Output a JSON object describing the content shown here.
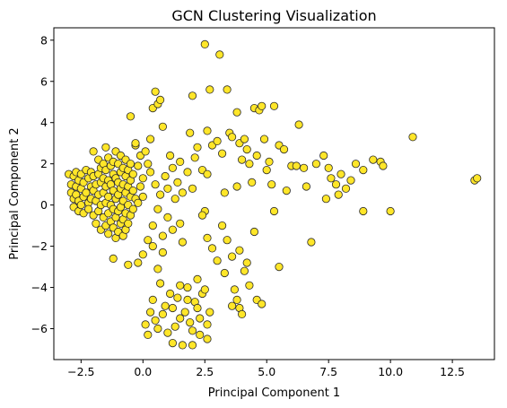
{
  "chart_data": {
    "type": "scatter",
    "title": "GCN Clustering Visualization",
    "xlabel": "Principal Component 1",
    "ylabel": "Principal Component 2",
    "xlim": [
      -3.6,
      14.2
    ],
    "ylim": [
      -7.5,
      8.6
    ],
    "xticks": [
      -2.5,
      0.0,
      2.5,
      5.0,
      7.5,
      10.0,
      12.5
    ],
    "xtick_labels": [
      "−2.5",
      "0.0",
      "2.5",
      "5.0",
      "7.5",
      "10.0",
      "12.5"
    ],
    "yticks": [
      -6,
      -4,
      -2,
      0,
      2,
      4,
      6,
      8
    ],
    "ytick_labels": [
      "−6",
      "−4",
      "−2",
      "0",
      "2",
      "4",
      "6",
      "8"
    ],
    "grid": false,
    "marker_color": "#ffe629",
    "marker_edge_color": "#2a2a2a",
    "points": [
      [
        -3.0,
        1.5
      ],
      [
        -2.9,
        1.0
      ],
      [
        -2.9,
        0.6
      ],
      [
        -2.8,
        1.4
      ],
      [
        -2.8,
        0.3
      ],
      [
        -2.8,
        -0.1
      ],
      [
        -2.7,
        1.6
      ],
      [
        -2.7,
        0.9
      ],
      [
        -2.7,
        0.5
      ],
      [
        -2.6,
        1.2
      ],
      [
        -2.6,
        0.2
      ],
      [
        -2.6,
        -0.3
      ],
      [
        -2.5,
        1.5
      ],
      [
        -2.5,
        0.8
      ],
      [
        -2.5,
        0.0
      ],
      [
        -2.4,
        1.1
      ],
      [
        -2.4,
        0.4
      ],
      [
        -2.4,
        -0.4
      ],
      [
        -2.3,
        1.7
      ],
      [
        -2.3,
        0.6
      ],
      [
        -2.2,
        1.3
      ],
      [
        -2.2,
        0.1
      ],
      [
        -2.2,
        -0.2
      ],
      [
        -2.1,
        1.6
      ],
      [
        -2.1,
        0.9
      ],
      [
        -2.1,
        0.3
      ],
      [
        -2.0,
        2.6
      ],
      [
        -2.0,
        1.4
      ],
      [
        -2.0,
        0.7
      ],
      [
        -2.0,
        -0.5
      ],
      [
        -1.9,
        1.0
      ],
      [
        -1.9,
        0.2
      ],
      [
        -1.9,
        -0.9
      ],
      [
        -1.8,
        2.2
      ],
      [
        -1.8,
        1.5
      ],
      [
        -1.8,
        0.5
      ],
      [
        -1.8,
        -0.3
      ],
      [
        -1.7,
        1.8
      ],
      [
        -1.7,
        1.1
      ],
      [
        -1.7,
        0.0
      ],
      [
        -1.7,
        -1.2
      ],
      [
        -1.6,
        2.0
      ],
      [
        -1.6,
        1.3
      ],
      [
        -1.6,
        0.6
      ],
      [
        -1.6,
        -0.6
      ],
      [
        -1.5,
        2.8
      ],
      [
        -1.5,
        1.7
      ],
      [
        -1.5,
        0.9
      ],
      [
        -1.5,
        0.1
      ],
      [
        -1.5,
        -1.0
      ],
      [
        -1.4,
        2.3
      ],
      [
        -1.4,
        1.2
      ],
      [
        -1.4,
        0.4
      ],
      [
        -1.4,
        -0.4
      ],
      [
        -1.4,
        -1.4
      ],
      [
        -1.3,
        1.9
      ],
      [
        -1.3,
        1.0
      ],
      [
        -1.3,
        0.0
      ],
      [
        -1.3,
        -0.8
      ],
      [
        -1.2,
        2.1
      ],
      [
        -1.2,
        1.5
      ],
      [
        -1.2,
        0.7
      ],
      [
        -1.2,
        -0.2
      ],
      [
        -1.2,
        -1.1
      ],
      [
        -1.1,
        2.6
      ],
      [
        -1.1,
        1.3
      ],
      [
        -1.1,
        0.3
      ],
      [
        -1.1,
        -0.6
      ],
      [
        -1.1,
        -1.6
      ],
      [
        -1.0,
        2.0
      ],
      [
        -1.0,
        1.1
      ],
      [
        -1.0,
        0.5
      ],
      [
        -1.0,
        -0.3
      ],
      [
        -1.0,
        -1.3
      ],
      [
        -0.9,
        2.4
      ],
      [
        -0.9,
        1.6
      ],
      [
        -0.9,
        0.8
      ],
      [
        -0.9,
        -0.1
      ],
      [
        -0.9,
        -0.9
      ],
      [
        -0.8,
        1.8
      ],
      [
        -0.8,
        1.0
      ],
      [
        -0.8,
        0.2
      ],
      [
        -0.8,
        -0.7
      ],
      [
        -0.8,
        -1.5
      ],
      [
        -0.7,
        2.2
      ],
      [
        -0.7,
        1.4
      ],
      [
        -0.7,
        0.6
      ],
      [
        -0.7,
        -0.4
      ],
      [
        -0.7,
        -1.2
      ],
      [
        -0.6,
        1.7
      ],
      [
        -0.6,
        0.9
      ],
      [
        -0.6,
        0.0
      ],
      [
        -0.6,
        -0.9
      ],
      [
        -0.5,
        2.0
      ],
      [
        -0.5,
        1.2
      ],
      [
        -0.5,
        0.4
      ],
      [
        -0.5,
        -0.5
      ],
      [
        -0.4,
        1.5
      ],
      [
        -0.4,
        0.7
      ],
      [
        -0.4,
        -0.2
      ],
      [
        -0.3,
        2.9
      ],
      [
        -0.3,
        0.3
      ],
      [
        -0.2,
        1.9
      ],
      [
        -0.2,
        0.1
      ],
      [
        -0.1,
        2.4
      ],
      [
        -0.1,
        0.9
      ],
      [
        0.0,
        1.3
      ],
      [
        0.0,
        0.4
      ],
      [
        -0.5,
        4.3
      ],
      [
        -0.3,
        3.0
      ],
      [
        0.1,
        2.6
      ],
      [
        0.2,
        2.0
      ],
      [
        0.3,
        3.2
      ],
      [
        0.4,
        4.7
      ],
      [
        0.5,
        5.5
      ],
      [
        0.6,
        4.9
      ],
      [
        0.7,
        5.1
      ],
      [
        0.8,
        3.8
      ],
      [
        0.3,
        1.6
      ],
      [
        0.5,
        1.0
      ],
      [
        0.7,
        0.5
      ],
      [
        0.9,
        1.4
      ],
      [
        1.0,
        0.8
      ],
      [
        1.2,
        1.8
      ],
      [
        1.4,
        1.1
      ],
      [
        1.5,
        2.1
      ],
      [
        1.6,
        0.6
      ],
      [
        1.8,
        1.6
      ],
      [
        2.0,
        0.8
      ],
      [
        1.1,
        2.4
      ],
      [
        1.3,
        0.3
      ],
      [
        0.6,
        -0.2
      ],
      [
        0.4,
        -1.0
      ],
      [
        0.8,
        -1.5
      ],
      [
        1.0,
        -0.6
      ],
      [
        1.2,
        -1.2
      ],
      [
        1.5,
        -0.9
      ],
      [
        1.6,
        -1.8
      ],
      [
        0.2,
        -1.7
      ],
      [
        0.0,
        -2.4
      ],
      [
        -0.2,
        -2.8
      ],
      [
        -0.6,
        -2.9
      ],
      [
        -1.2,
        -2.6
      ],
      [
        0.4,
        -2.0
      ],
      [
        0.6,
        -3.1
      ],
      [
        0.8,
        -2.3
      ],
      [
        1.9,
        3.5
      ],
      [
        2.0,
        5.3
      ],
      [
        2.2,
        2.8
      ],
      [
        2.5,
        7.8
      ],
      [
        2.6,
        3.6
      ],
      [
        2.7,
        5.6
      ],
      [
        2.8,
        2.9
      ],
      [
        3.1,
        7.3
      ],
      [
        3.0,
        3.1
      ],
      [
        3.2,
        2.5
      ],
      [
        3.4,
        5.6
      ],
      [
        3.5,
        3.5
      ],
      [
        3.6,
        3.3
      ],
      [
        3.8,
        4.5
      ],
      [
        3.9,
        3.0
      ],
      [
        4.0,
        2.2
      ],
      [
        4.1,
        3.2
      ],
      [
        4.2,
        2.7
      ],
      [
        4.3,
        2.0
      ],
      [
        4.5,
        4.7
      ],
      [
        4.6,
        2.4
      ],
      [
        4.7,
        4.6
      ],
      [
        4.8,
        4.8
      ],
      [
        4.9,
        3.2
      ],
      [
        5.0,
        1.7
      ],
      [
        5.1,
        2.1
      ],
      [
        5.3,
        4.8
      ],
      [
        5.5,
        2.9
      ],
      [
        5.7,
        2.7
      ],
      [
        6.0,
        1.9
      ],
      [
        6.2,
        1.9
      ],
      [
        6.3,
        3.9
      ],
      [
        6.5,
        1.8
      ],
      [
        7.0,
        2.0
      ],
      [
        7.3,
        2.4
      ],
      [
        7.5,
        1.8
      ],
      [
        7.6,
        1.3
      ],
      [
        7.8,
        1.0
      ],
      [
        8.0,
        1.5
      ],
      [
        8.2,
        0.8
      ],
      [
        8.4,
        1.2
      ],
      [
        8.6,
        2.0
      ],
      [
        8.9,
        1.7
      ],
      [
        9.3,
        2.2
      ],
      [
        9.6,
        2.1
      ],
      [
        9.7,
        1.9
      ],
      [
        10.9,
        3.3
      ],
      [
        13.4,
        1.2
      ],
      [
        13.5,
        1.3
      ],
      [
        7.4,
        0.3
      ],
      [
        7.9,
        0.5
      ],
      [
        3.8,
        0.9
      ],
      [
        4.4,
        1.1
      ],
      [
        5.2,
        1.0
      ],
      [
        5.8,
        0.7
      ],
      [
        6.6,
        0.9
      ],
      [
        3.3,
        0.6
      ],
      [
        2.4,
        1.7
      ],
      [
        2.6,
        1.5
      ],
      [
        2.1,
        2.3
      ],
      [
        2.5,
        -0.3
      ],
      [
        2.4,
        -0.5
      ],
      [
        2.8,
        -2.1
      ],
      [
        3.0,
        -2.7
      ],
      [
        2.6,
        -1.6
      ],
      [
        3.2,
        -1.0
      ],
      [
        3.4,
        -1.7
      ],
      [
        3.6,
        -2.5
      ],
      [
        3.9,
        -2.2
      ],
      [
        4.1,
        -3.2
      ],
      [
        4.2,
        -2.8
      ],
      [
        4.5,
        -1.3
      ],
      [
        5.3,
        -0.3
      ],
      [
        5.5,
        -3.0
      ],
      [
        6.8,
        -1.8
      ],
      [
        8.9,
        -0.3
      ],
      [
        10.0,
        -0.3
      ],
      [
        3.3,
        -3.3
      ],
      [
        3.7,
        -4.1
      ],
      [
        3.8,
        -4.6
      ],
      [
        3.9,
        -5.0
      ],
      [
        4.0,
        -5.3
      ],
      [
        4.3,
        -3.9
      ],
      [
        4.6,
        -4.6
      ],
      [
        4.8,
        -4.8
      ],
      [
        3.6,
        -4.9
      ],
      [
        0.1,
        -5.8
      ],
      [
        0.2,
        -6.3
      ],
      [
        0.3,
        -5.2
      ],
      [
        0.4,
        -4.6
      ],
      [
        0.5,
        -5.6
      ],
      [
        0.6,
        -6.0
      ],
      [
        0.7,
        -3.8
      ],
      [
        0.8,
        -5.3
      ],
      [
        0.9,
        -4.9
      ],
      [
        1.0,
        -6.2
      ],
      [
        1.1,
        -4.3
      ],
      [
        1.2,
        -5.0
      ],
      [
        1.3,
        -5.9
      ],
      [
        1.4,
        -4.5
      ],
      [
        1.5,
        -5.5
      ],
      [
        1.6,
        -6.8
      ],
      [
        1.7,
        -5.2
      ],
      [
        1.8,
        -4.0
      ],
      [
        1.9,
        -5.7
      ],
      [
        2.0,
        -6.1
      ],
      [
        2.0,
        -6.8
      ],
      [
        2.1,
        -4.7
      ],
      [
        2.2,
        -5.0
      ],
      [
        2.3,
        -6.3
      ],
      [
        2.3,
        -5.5
      ],
      [
        2.4,
        -4.3
      ],
      [
        2.5,
        -4.1
      ],
      [
        2.6,
        -5.8
      ],
      [
        2.6,
        -6.5
      ],
      [
        2.7,
        -5.2
      ],
      [
        1.2,
        -6.7
      ],
      [
        1.5,
        -3.9
      ],
      [
        1.8,
        -4.6
      ],
      [
        2.2,
        -3.6
      ]
    ]
  }
}
